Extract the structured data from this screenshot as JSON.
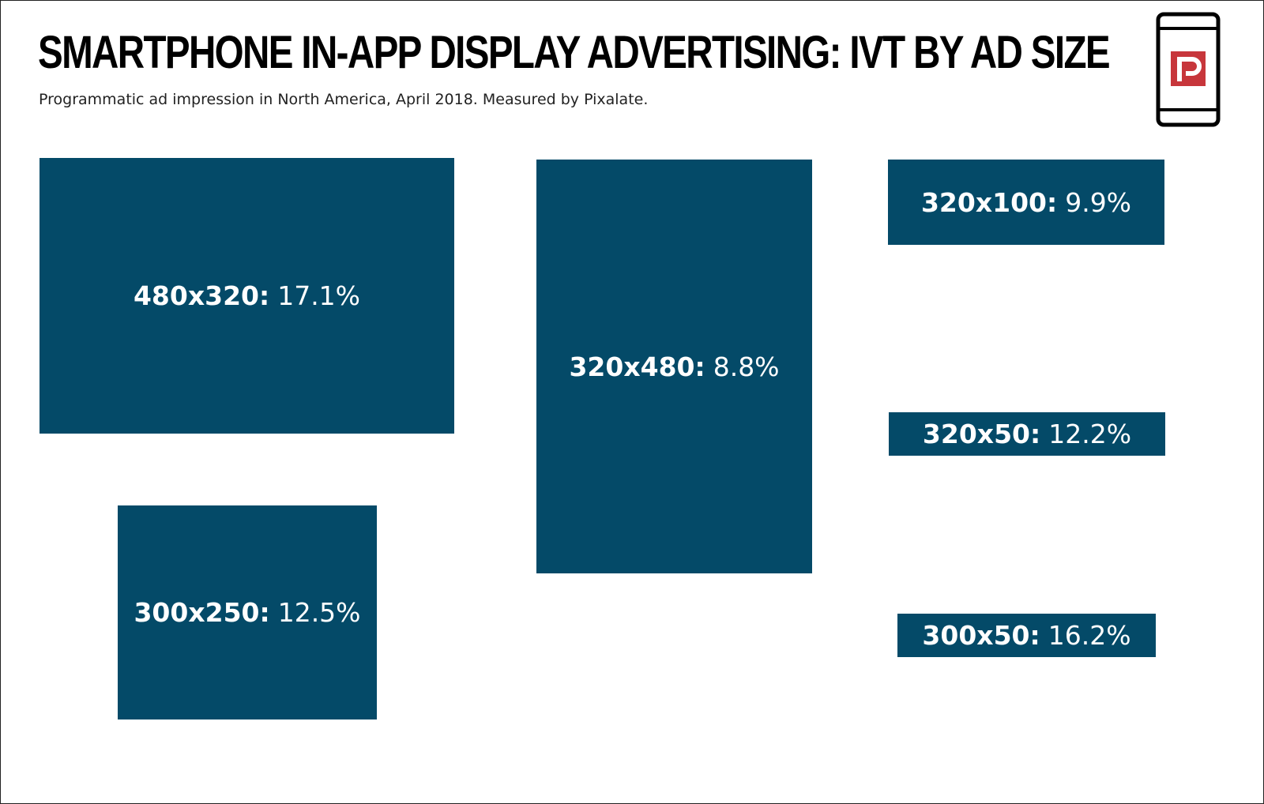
{
  "title": "SMARTPHONE IN-APP DISPLAY ADVERTISING: IVT BY AD SIZE",
  "subtitle": "Programmatic ad impression in North America, April 2018. Measured by Pixalate.",
  "colors": {
    "tile": "#044a68",
    "logo_red": "#c7363b",
    "text_on_tile": "#ffffff"
  },
  "logo": {
    "icon": "pixalate-phone-logo-icon"
  },
  "chart_data": {
    "type": "bar",
    "categories": [
      "480x320",
      "320x480",
      "320x100",
      "320x50",
      "300x250",
      "300x50"
    ],
    "values": [
      17.1,
      8.8,
      9.9,
      12.2,
      12.5,
      16.2
    ],
    "tiles": [
      {
        "size": "480x320:",
        "value": "17.1%"
      },
      {
        "size": "320x480:",
        "value": "8.8%"
      },
      {
        "size": "320x100:",
        "value": "9.9%"
      },
      {
        "size": "320x50:",
        "value": "12.2%"
      },
      {
        "size": "300x250:",
        "value": "12.5%"
      },
      {
        "size": "300x50:",
        "value": "16.2%"
      }
    ]
  }
}
